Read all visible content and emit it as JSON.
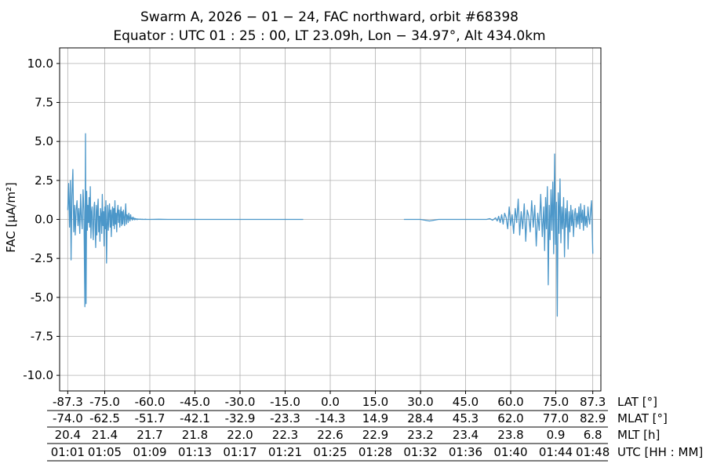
{
  "title_line1": "Swarm A,  2026 − 01 − 24,  FAC northward,  orbit #68398",
  "title_line2": "Equator :  UTC 01 : 25 : 00,  LT 23.09h,  Lon  − 34.97°,  Alt 434.0km",
  "ylabel": "FAC [µA/m²]",
  "colors": {
    "line": "#4c97c9",
    "grid": "#b0b0b0",
    "axis": "#000000"
  },
  "chart_data": {
    "type": "line",
    "ylim": [
      -11,
      11
    ],
    "yticks": [
      -10.0,
      -7.5,
      -5.0,
      -2.5,
      0.0,
      2.5,
      5.0,
      7.5,
      10.0
    ],
    "ytick_labels": [
      "-10.0",
      "-7.5",
      "-5.0",
      "-2.5",
      "0.0",
      "2.5",
      "5.0",
      "7.5",
      "10.0"
    ],
    "grid": true,
    "xaxis_rows": [
      {
        "name": "LAT [°]",
        "labels": [
          "-87.3",
          "-75.0",
          "-60.0",
          "-45.0",
          "-30.0",
          "-15.0",
          "0.0",
          "15.0",
          "30.0",
          "45.0",
          "60.0",
          "75.0",
          "87.3"
        ]
      },
      {
        "name": "MLAT [°]",
        "labels": [
          "-74.0",
          "-62.5",
          "-51.7",
          "-42.1",
          "-32.9",
          "-23.3",
          "-14.3",
          "14.9",
          "28.4",
          "45.3",
          "62.0",
          "77.0",
          "82.9"
        ]
      },
      {
        "name": "MLT [h]",
        "labels": [
          "20.4",
          "21.4",
          "21.7",
          "21.8",
          "22.0",
          "22.3",
          "22.6",
          "22.9",
          "23.2",
          "23.4",
          "23.8",
          "0.9",
          "6.8"
        ]
      },
      {
        "name": "UTC [HH : MM]",
        "labels": [
          "01:01",
          "01:05",
          "01:09",
          "01:13",
          "01:17",
          "01:21",
          "01:25",
          "01:28",
          "01:32",
          "01:36",
          "01:40",
          "01:44",
          "01:48"
        ]
      }
    ],
    "xlim": [
      -90,
      90
    ],
    "tick_positions_lat": [
      -87.3,
      -75,
      -60,
      -45,
      -30,
      -15,
      0,
      15,
      30,
      45,
      60,
      75,
      87.3
    ],
    "series": [
      {
        "segments": [
          {
            "x": [
              -87.3,
              -87.0,
              -86.7,
              -86.4,
              -86.2,
              -85.9,
              -85.6,
              -85.3,
              -85.0,
              -84.8,
              -84.5,
              -84.2,
              -83.9,
              -83.6,
              -83.3,
              -83.0,
              -82.8,
              -82.5,
              -82.2,
              -81.9,
              -81.6,
              -81.4,
              -81.2,
              -81.0,
              -80.8,
              -80.6,
              -80.4,
              -80.2,
              -80.0,
              -79.8,
              -79.6,
              -79.4,
              -79.2,
              -79.0,
              -78.8,
              -78.6,
              -78.4,
              -78.2,
              -78.0,
              -77.8,
              -77.6,
              -77.4,
              -77.2,
              -77.0,
              -76.8,
              -76.6,
              -76.4,
              -76.2,
              -76.0,
              -75.8,
              -75.6,
              -75.4,
              -75.2,
              -75.0,
              -74.8,
              -74.6,
              -74.4,
              -74.2,
              -74.0,
              -73.8,
              -73.6,
              -73.4,
              -73.2,
              -73.0,
              -72.8,
              -72.6,
              -72.4,
              -72.2,
              -72.0,
              -71.8,
              -71.6,
              -71.4,
              -71.2,
              -71.0,
              -70.8,
              -70.6,
              -70.4,
              -70.2,
              -70.0,
              -69.8,
              -69.6,
              -69.4,
              -69.2,
              -69.0,
              -68.8,
              -68.6,
              -68.4,
              -68.2,
              -68.0,
              -67.8,
              -67.6,
              -67.4,
              -67.2,
              -67.0,
              -66.8,
              -66.6,
              -66.4,
              -66.2,
              -66.0,
              -65.8,
              -65.6,
              -65.4,
              -65.2,
              -65.0,
              -64.8,
              -64.6,
              -64.4,
              -64.2,
              -64.0,
              -63.8,
              -63.5,
              -63.2,
              -63.0,
              -62.8,
              -62.5,
              -62.0,
              -61.5,
              -61.0,
              -60.5,
              -60.0,
              -57.0,
              -54.0,
              -50.0,
              -45.0,
              -40.0,
              -35.0,
              -30.0,
              -25.0,
              -20.0,
              -15.0,
              -12.0,
              -9.0
            ],
            "y": [
              0.6,
              2.3,
              -0.5,
              2.5,
              -2.6,
              1.5,
              3.2,
              -0.8,
              0.9,
              -1.0,
              0.6,
              1.2,
              -0.4,
              0.7,
              -0.9,
              1.6,
              0.3,
              -0.6,
              1.9,
              0.5,
              -5.6,
              5.5,
              -5.4,
              1.8,
              -0.7,
              0.9,
              -0.2,
              1.4,
              -0.5,
              2.1,
              -1.2,
              0.4,
              0.8,
              -0.6,
              -1.3,
              0.7,
              1.1,
              -0.5,
              -1.8,
              0.9,
              -1.0,
              0.6,
              1.3,
              -0.8,
              0.2,
              -1.4,
              0.7,
              0.3,
              -0.9,
              1.6,
              -0.4,
              0.5,
              -1.7,
              0.8,
              -0.6,
              1.2,
              -2.8,
              -0.3,
              0.9,
              -0.7,
              0.4,
              1.0,
              -0.5,
              0.6,
              -1.1,
              0.3,
              0.8,
              -0.4,
              0.7,
              -0.6,
              1.2,
              -0.3,
              0.4,
              -0.8,
              0.5,
              0.9,
              -0.2,
              0.6,
              -0.5,
              0.3,
              0.8,
              -0.4,
              0.5,
              -0.3,
              0.6,
              0.2,
              -0.4,
              0.4,
              1.0,
              -0.3,
              0.3,
              0.2,
              -0.2,
              0.4,
              0.1,
              -0.1,
              0.3,
              0.05,
              0.1,
              -0.05,
              0.15,
              0.02,
              0.08,
              -0.03,
              0.06,
              0.01,
              0.04,
              -0.02,
              0.03,
              0.01,
              0.02,
              0.0,
              0.02,
              0.0,
              0.01,
              0.0,
              0.01,
              0.0,
              0.0,
              0.0,
              0.01,
              0.0,
              0.0,
              0.0,
              0.0,
              0.0,
              0.0,
              0.0,
              0.0,
              0.0,
              0.0,
              0.0
            ]
          },
          {
            "x": [
              24.5,
              27.0,
              30.0,
              33.0,
              36.0,
              39.0,
              42.0,
              45.0,
              48.0,
              50.0,
              52.0,
              53.0,
              54.0,
              55.0,
              55.5,
              56.0,
              56.5,
              57.0,
              57.5,
              58.0,
              58.5,
              59.0,
              59.5,
              60.0,
              60.5,
              61.0,
              61.5,
              62.0,
              62.5,
              63.0,
              63.5,
              64.0,
              64.5,
              65.0,
              65.5,
              66.0,
              66.5,
              67.0,
              67.5,
              68.0,
              68.5,
              69.0,
              69.5,
              70.0,
              70.5,
              71.0,
              71.3,
              71.6,
              71.9,
              72.2,
              72.5,
              72.8,
              73.1,
              73.4,
              73.7,
              74.0,
              74.3,
              74.6,
              74.9,
              75.2,
              75.5,
              75.8,
              76.1,
              76.4,
              76.7,
              77.0,
              77.3,
              77.6,
              77.9,
              78.2,
              78.5,
              78.8,
              79.1,
              79.4,
              79.7,
              80.0,
              80.3,
              80.6,
              80.9,
              81.2,
              81.5,
              81.8,
              82.1,
              82.4,
              82.7,
              83.0,
              83.3,
              83.6,
              83.9,
              84.2,
              84.5,
              84.8,
              85.1,
              85.4,
              85.7,
              86.0,
              86.3,
              86.6,
              86.9,
              87.3
            ],
            "y": [
              0.0,
              0.0,
              0.0,
              -0.1,
              0.0,
              0.0,
              0.0,
              0.0,
              0.0,
              0.0,
              0.0,
              0.05,
              -0.05,
              0.1,
              -0.1,
              0.2,
              -0.2,
              0.3,
              -0.3,
              0.4,
              0.1,
              -0.6,
              0.8,
              -0.4,
              0.3,
              -0.9,
              0.7,
              -0.2,
              1.3,
              -1.0,
              0.5,
              -0.6,
              1.0,
              -1.4,
              0.6,
              0.2,
              -0.8,
              1.2,
              -0.5,
              0.9,
              -1.7,
              0.4,
              -0.7,
              1.6,
              -1.1,
              0.8,
              -2.0,
              1.4,
              -0.6,
              2.1,
              -4.2,
              0.9,
              -1.3,
              1.9,
              -0.7,
              2.4,
              -2.2,
              4.2,
              -1.6,
              1.1,
              -6.2,
              1.7,
              -0.9,
              2.6,
              -1.5,
              0.8,
              -0.6,
              1.4,
              -2.4,
              0.7,
              -0.5,
              1.2,
              -1.9,
              0.5,
              -0.8,
              0.9,
              -0.4,
              0.6,
              -1.1,
              0.3,
              0.7,
              -0.5,
              0.4,
              -0.3,
              0.8,
              -0.6,
              1.0,
              -0.2,
              0.6,
              -0.7,
              0.9,
              -0.4,
              0.2,
              -0.5,
              0.8,
              0.1,
              -0.3,
              0.6,
              1.2,
              -2.2
            ]
          }
        ]
      }
    ]
  }
}
